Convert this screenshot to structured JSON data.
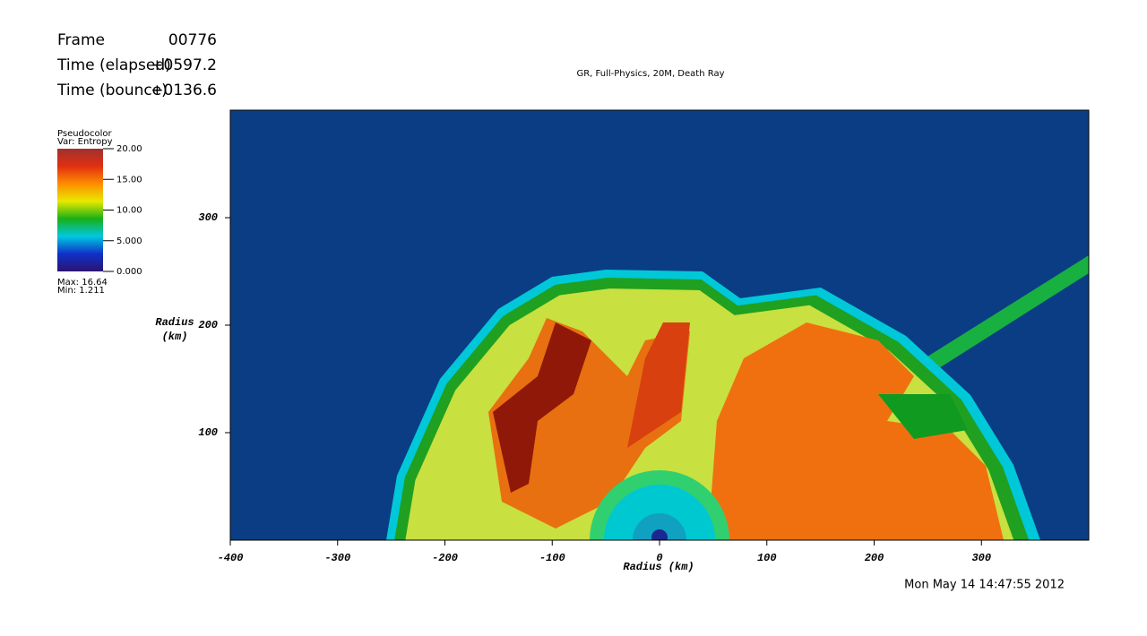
{
  "chart_data": {
    "type": "pseudocolor",
    "title": "GR, Full-Physics, 20M, Death Ray",
    "xlabel": "Radius (km)",
    "ylabel": [
      "Radius",
      "(km)"
    ],
    "xlim": [
      -400,
      400
    ],
    "ylim": [
      0,
      400
    ],
    "xticks": [
      -400,
      -300,
      -200,
      -100,
      0,
      100,
      200,
      300
    ],
    "yticks": [
      100,
      200,
      300
    ],
    "info": [
      [
        "Frame",
        "00776"
      ],
      [
        "Time (elapsed)",
        "+0597.2"
      ],
      [
        "Time (bounce)",
        "+0136.6"
      ]
    ],
    "legend": {
      "title": "Pseudocolor",
      "variable": "Var: Entropy",
      "clim": [
        0,
        20
      ],
      "ticks": [
        {
          "value": 20,
          "label": "20.00"
        },
        {
          "value": 15,
          "label": "15.00"
        },
        {
          "value": 10,
          "label": "10.00"
        },
        {
          "value": 5,
          "label": "5.000"
        },
        {
          "value": 0,
          "label": "0.000"
        }
      ],
      "colors": [
        "#2a1470",
        "#1030c8",
        "#00c8e0",
        "#18b018",
        "#e8e800",
        "#ff8c00",
        "#e03010",
        "#a03030"
      ],
      "max": "Max:  16.64",
      "min": "Min:  1.211"
    },
    "timestamp": "Mon May 14 14:47:55 2012"
  }
}
